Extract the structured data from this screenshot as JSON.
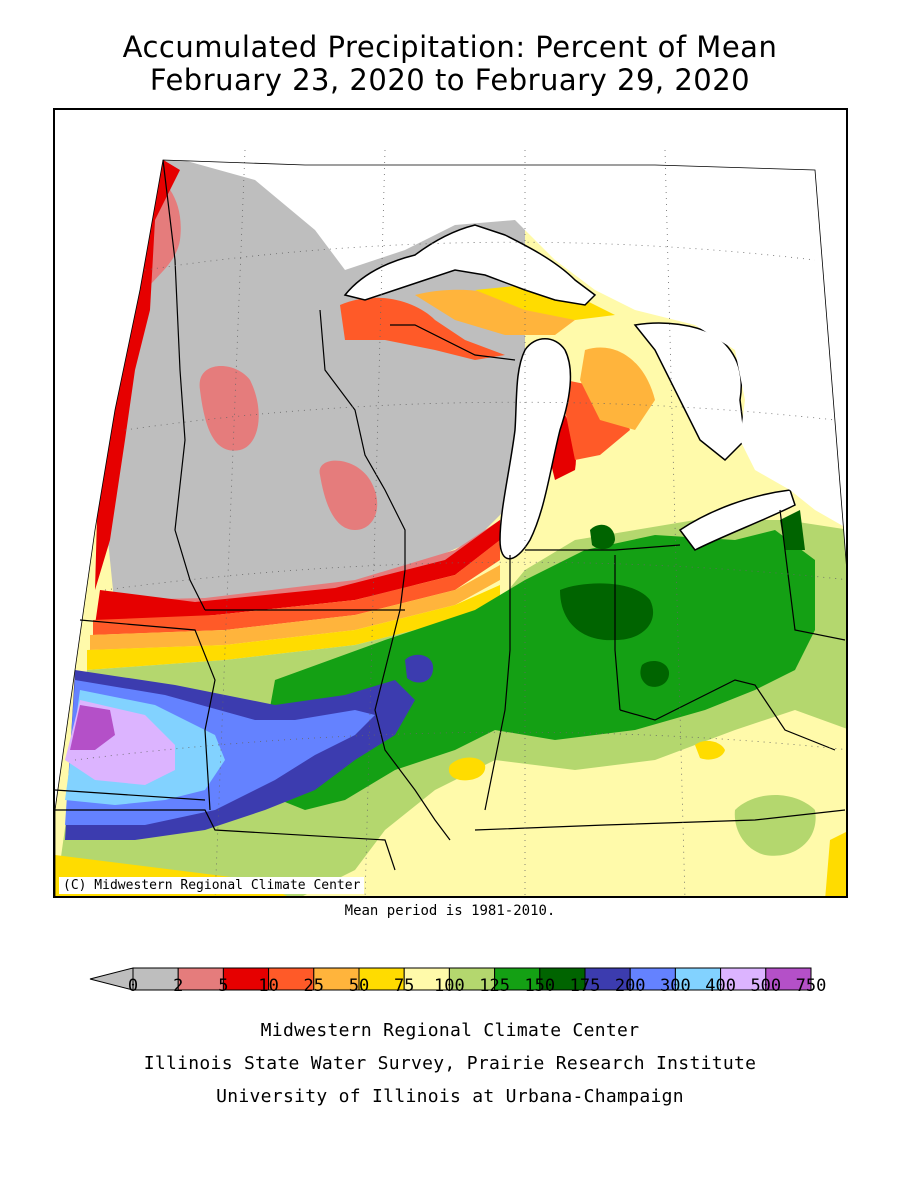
{
  "title": {
    "line1": "Accumulated Precipitation: Percent of Mean",
    "line2": "February 23, 2020 to February 29, 2020"
  },
  "map": {
    "copyright": "(C) Midwestern Regional Climate Center",
    "mean_period": "Mean period is 1981-2010."
  },
  "legend": {
    "ticks": [
      "0",
      "2",
      "5",
      "10",
      "25",
      "50",
      "75",
      "100",
      "125",
      "150",
      "175",
      "200",
      "300",
      "400",
      "500",
      "750"
    ],
    "colors": [
      "#bebebe",
      "#e57c7c",
      "#e60000",
      "#ff5a28",
      "#ffb43c",
      "#ffdc00",
      "#fffaaa",
      "#b4d76e",
      "#14a014",
      "#006400",
      "#3c3caf",
      "#6482ff",
      "#82d2ff",
      "#dcb4ff",
      "#b450c8"
    ],
    "below_color": "#bebebe"
  },
  "credits": {
    "line1": "Midwestern Regional Climate Center",
    "line2": "Illinois State Water Survey, Prairie Research Institute",
    "line3": "University of Illinois at Urbana-Champaign"
  }
}
